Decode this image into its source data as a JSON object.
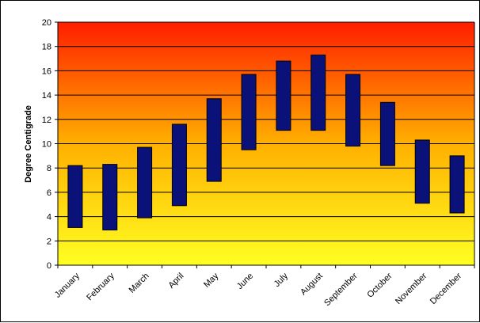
{
  "chart_data": {
    "type": "bar",
    "subtype": "floating-range",
    "title": "",
    "xlabel": "",
    "ylabel": "Degree Centigrade",
    "ylim": [
      0,
      20
    ],
    "yticks": [
      0,
      2,
      4,
      6,
      8,
      10,
      12,
      14,
      16,
      18,
      20
    ],
    "grid": true,
    "legend": "none",
    "categories": [
      "January",
      "February",
      "March",
      "April",
      "May",
      "June",
      "July",
      "August",
      "September",
      "October",
      "November",
      "December"
    ],
    "series": [
      {
        "low": [
          3.1,
          2.9,
          3.9,
          4.9,
          6.9,
          9.5,
          11.1,
          11.1,
          9.8,
          8.2,
          5.1,
          4.3
        ],
        "high": [
          8.2,
          8.3,
          9.7,
          11.6,
          13.7,
          15.7,
          16.8,
          17.3,
          15.7,
          13.4,
          10.3,
          9.0
        ]
      }
    ],
    "colors": {
      "bar_fill": "#0a1178",
      "bar_stroke": "#000000",
      "background_top": "#ff1e00",
      "background_mid": "#ffb000",
      "background_bottom": "#ffff22",
      "gridline": "#000000"
    }
  }
}
